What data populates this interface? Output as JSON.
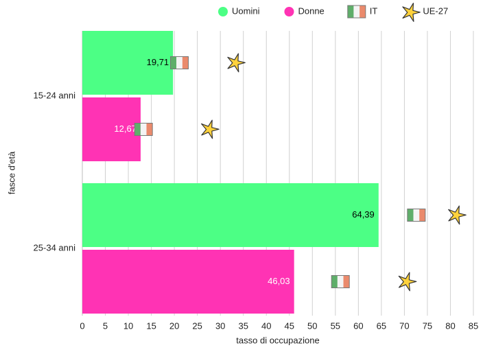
{
  "chart_data": {
    "type": "bar",
    "orientation": "horizontal",
    "xlabel": "tasso di occupazione",
    "ylabel": "fasce d'età",
    "categories": [
      "15-24 anni",
      "25-34 anni"
    ],
    "series": [
      {
        "name": "Uomini",
        "color": "#4cff85",
        "label_color": "#000000",
        "values": [
          19.71,
          64.39
        ],
        "value_labels": [
          "19,71",
          "64,39"
        ]
      },
      {
        "name": "Donne",
        "color": "#ff33b4",
        "label_color": "#ffffff",
        "values": [
          12.67,
          46.03
        ],
        "value_labels": [
          "12,67",
          "46,03"
        ]
      }
    ],
    "markers": [
      {
        "name": "IT",
        "shape": "flag",
        "values": [
          [
            21.1,
            72.6
          ],
          [
            13.3,
            56.1
          ]
        ]
      },
      {
        "name": "UE-27",
        "shape": "star",
        "color": "#ffd23c",
        "values": [
          [
            33.3,
            81.3
          ],
          [
            27.6,
            70.5
          ]
        ]
      }
    ],
    "xlim": [
      0,
      85
    ],
    "xticks": [
      0,
      5,
      10,
      15,
      20,
      25,
      30,
      35,
      40,
      45,
      50,
      55,
      60,
      65,
      70,
      75,
      80,
      85
    ],
    "grid": true,
    "legend": "top-right"
  }
}
